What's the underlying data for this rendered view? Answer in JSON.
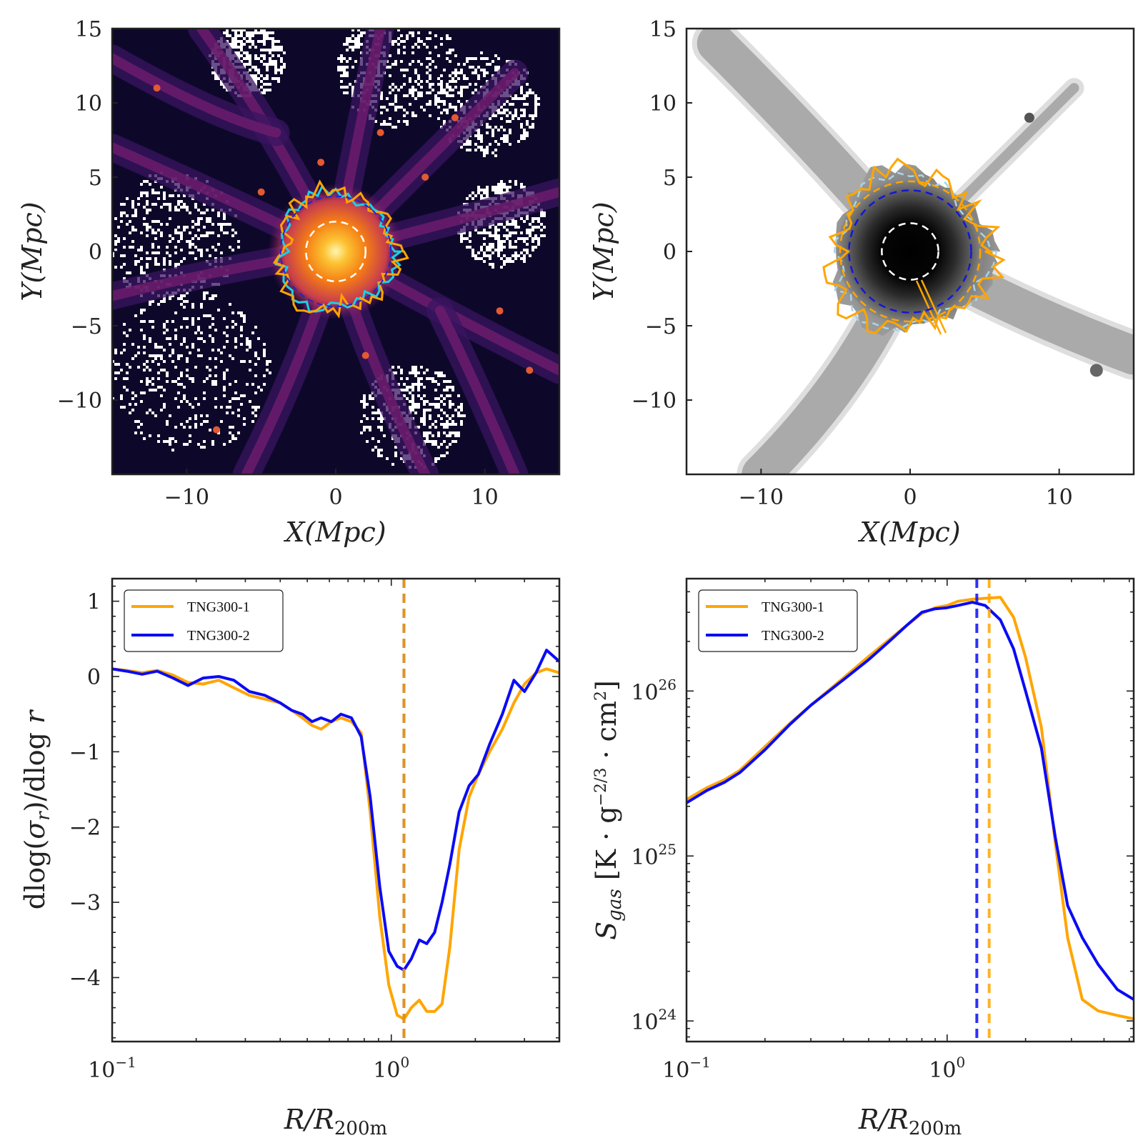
{
  "colors": {
    "tng1": "#ffa500",
    "tng2": "#0b0bf5",
    "cyan": "#18d2e6",
    "lightblue": "#a8d4e6",
    "white": "#ffffff",
    "frame": "#222222"
  },
  "panels": [
    {
      "id": "dm-map",
      "type": "heatmap",
      "colormap": "inferno",
      "xlabel": "X(Mpc)",
      "ylabel": "Y(Mpc)",
      "xlim": [
        -15,
        15
      ],
      "ylim": [
        -15,
        15
      ],
      "xticks": [
        {
          "v": -10,
          "label": "−10"
        },
        {
          "v": 0,
          "label": "0"
        },
        {
          "v": 10,
          "label": "10"
        }
      ],
      "yticks": [
        {
          "v": 15,
          "label": "15"
        },
        {
          "v": 10,
          "label": "10"
        },
        {
          "v": 5,
          "label": "5"
        },
        {
          "v": 0,
          "label": "0"
        },
        {
          "v": -5,
          "label": "−5"
        },
        {
          "v": -10,
          "label": "−10"
        }
      ],
      "r200m_circle_mpc": 2.0,
      "splashback_circle_mpc": 3.7,
      "boundary_contours": [
        {
          "name": "TNG300-1",
          "color": "orange",
          "mean_radius_mpc": 3.9
        },
        {
          "name": "TNG300-2",
          "color": "cyan",
          "mean_radius_mpc": 3.8
        }
      ]
    },
    {
      "id": "gas-map",
      "type": "heatmap",
      "colormap": "gray_r",
      "xlabel": "X(Mpc)",
      "ylabel": "Y(Mpc)",
      "xlim": [
        -15,
        15
      ],
      "ylim": [
        -15,
        15
      ],
      "xticks": [
        {
          "v": -10,
          "label": "−10"
        },
        {
          "v": 0,
          "label": "0"
        },
        {
          "v": 10,
          "label": "10"
        }
      ],
      "yticks": [
        {
          "v": 15,
          "label": "15"
        },
        {
          "v": 10,
          "label": "10"
        },
        {
          "v": 5,
          "label": "5"
        },
        {
          "v": 0,
          "label": "0"
        },
        {
          "v": -5,
          "label": "−5"
        },
        {
          "v": -10,
          "label": "−10"
        }
      ],
      "r200m_circle_mpc": 1.9,
      "circles_mpc": [
        {
          "r": 4.7,
          "color": "orange"
        },
        {
          "r": 4.1,
          "color": "blue"
        }
      ],
      "boundary_contours": [
        {
          "name": "TNG300-1",
          "color": "orange",
          "mean_radius_mpc": 5.3
        },
        {
          "name": "TNG300-2",
          "color": "lightblue",
          "mean_radius_mpc": 5.0
        }
      ]
    }
  ],
  "chart_data": [
    {
      "type": "line",
      "xscale": "log",
      "xlim": [
        0.1,
        4.0
      ],
      "ylim": [
        -4.85,
        1.3
      ],
      "xlabel": "R/R200m",
      "ylabel": "dlog(σr)/dlog r",
      "xticks": [
        {
          "v": 0.1,
          "base": "10",
          "exp": "−1"
        },
        {
          "v": 1.0,
          "base": "10",
          "exp": "0"
        }
      ],
      "yticks": [
        {
          "v": 1,
          "label": "1"
        },
        {
          "v": 0,
          "label": "0"
        },
        {
          "v": -1,
          "label": "−1"
        },
        {
          "v": -2,
          "label": "−2"
        },
        {
          "v": -3,
          "label": "−3"
        },
        {
          "v": -4,
          "label": "−4"
        }
      ],
      "legend": {
        "position": "top-left",
        "entries": [
          "TNG300-1",
          "TNG300-2"
        ]
      },
      "vlines": [
        {
          "x": 1.11,
          "series": "TNG300-2"
        },
        {
          "x": 1.11,
          "series": "TNG300-1"
        }
      ],
      "series": [
        {
          "name": "TNG300-1",
          "x": [
            0.1,
            0.113,
            0.128,
            0.145,
            0.165,
            0.187,
            0.212,
            0.241,
            0.273,
            0.31,
            0.352,
            0.4,
            0.44,
            0.48,
            0.52,
            0.56,
            0.61,
            0.66,
            0.72,
            0.78,
            0.84,
            0.91,
            0.98,
            1.05,
            1.11,
            1.18,
            1.26,
            1.34,
            1.43,
            1.52,
            1.62,
            1.75,
            1.9,
            2.05,
            2.25,
            2.5,
            2.75,
            3.0,
            3.3,
            3.6,
            4.0
          ],
          "y": [
            0.1,
            0.08,
            0.05,
            0.08,
            0.02,
            -0.08,
            -0.1,
            -0.05,
            -0.15,
            -0.25,
            -0.3,
            -0.35,
            -0.45,
            -0.55,
            -0.65,
            -0.7,
            -0.6,
            -0.55,
            -0.6,
            -0.75,
            -1.8,
            -3.2,
            -4.1,
            -4.5,
            -4.55,
            -4.4,
            -4.3,
            -4.45,
            -4.45,
            -4.35,
            -3.6,
            -2.3,
            -1.6,
            -1.3,
            -1.0,
            -0.7,
            -0.35,
            -0.1,
            0.05,
            0.1,
            0.05
          ]
        },
        {
          "name": "TNG300-2",
          "x": [
            0.1,
            0.113,
            0.128,
            0.145,
            0.165,
            0.187,
            0.212,
            0.241,
            0.273,
            0.31,
            0.352,
            0.4,
            0.44,
            0.48,
            0.52,
            0.56,
            0.61,
            0.66,
            0.72,
            0.78,
            0.84,
            0.91,
            0.98,
            1.05,
            1.11,
            1.18,
            1.26,
            1.34,
            1.43,
            1.52,
            1.62,
            1.75,
            1.9,
            2.05,
            2.25,
            2.5,
            2.75,
            3.0,
            3.3,
            3.6,
            4.0
          ],
          "y": [
            0.1,
            0.07,
            0.03,
            0.07,
            -0.02,
            -0.12,
            -0.02,
            0.0,
            -0.05,
            -0.2,
            -0.25,
            -0.35,
            -0.45,
            -0.5,
            -0.6,
            -0.55,
            -0.6,
            -0.5,
            -0.55,
            -0.8,
            -1.6,
            -2.8,
            -3.65,
            -3.85,
            -3.9,
            -3.75,
            -3.5,
            -3.55,
            -3.4,
            -3.0,
            -2.5,
            -1.8,
            -1.45,
            -1.3,
            -0.9,
            -0.5,
            -0.05,
            -0.2,
            0.05,
            0.35,
            0.2
          ]
        }
      ]
    },
    {
      "type": "line",
      "xscale": "log",
      "yscale": "log",
      "xlim": [
        0.1,
        5.2
      ],
      "ylim": [
        7.5e+23,
        4.8e+26
      ],
      "xlabel": "R/R200m",
      "ylabel": "Sgas [K·g−2/3·cm2]",
      "xticks": [
        {
          "v": 0.1,
          "base": "10",
          "exp": "−1"
        },
        {
          "v": 1.0,
          "base": "10",
          "exp": "0"
        }
      ],
      "yticks": [
        {
          "v": 1e+24,
          "base": "10",
          "exp": "24"
        },
        {
          "v": 1e+25,
          "base": "10",
          "exp": "25"
        },
        {
          "v": 1e+26,
          "base": "10",
          "exp": "26"
        }
      ],
      "legend": {
        "position": "top-left",
        "entries": [
          "TNG300-1",
          "TNG300-2"
        ]
      },
      "vlines": [
        {
          "x": 1.3,
          "series": "TNG300-2"
        },
        {
          "x": 1.45,
          "series": "TNG300-1"
        }
      ],
      "series": [
        {
          "name": "TNG300-1",
          "x": [
            0.1,
            0.12,
            0.14,
            0.16,
            0.2,
            0.25,
            0.3,
            0.4,
            0.5,
            0.6,
            0.7,
            0.8,
            0.9,
            1.0,
            1.1,
            1.25,
            1.4,
            1.6,
            1.8,
            2.0,
            2.3,
            2.6,
            2.9,
            3.3,
            3.8,
            4.5,
            5.2
          ],
          "y": [
            2.2e+25,
            2.6e+25,
            2.9e+25,
            3.3e+25,
            4.6e+25,
            6.4e+25,
            8.2e+25,
            1.2e+26,
            1.62e+26,
            2.05e+26,
            2.5e+26,
            2.95e+26,
            3.2e+26,
            3.3e+26,
            3.5e+26,
            3.6e+26,
            3.65e+26,
            3.7e+26,
            2.8e+26,
            1.6e+26,
            6e+25,
            1.2e+25,
            3.2e+24,
            1.35e+24,
            1.15e+24,
            1.08e+24,
            1.03e+24
          ]
        },
        {
          "name": "TNG300-2",
          "x": [
            0.1,
            0.12,
            0.14,
            0.16,
            0.2,
            0.25,
            0.3,
            0.4,
            0.5,
            0.6,
            0.7,
            0.8,
            0.9,
            1.0,
            1.1,
            1.25,
            1.4,
            1.6,
            1.8,
            2.0,
            2.3,
            2.6,
            2.9,
            3.3,
            3.8,
            4.5,
            5.2
          ],
          "y": [
            2.1e+25,
            2.5e+25,
            2.8e+25,
            3.2e+25,
            4.4e+25,
            6.3e+25,
            8.2e+25,
            1.17e+26,
            1.55e+26,
            2e+26,
            2.5e+26,
            3e+26,
            3.15e+26,
            3.2e+26,
            3.3e+26,
            3.45e+26,
            3.3e+26,
            2.7e+26,
            1.8e+26,
            1e+26,
            4.5e+25,
            1.3e+25,
            5e+24,
            3.2e+24,
            2.2e+24,
            1.55e+24,
            1.35e+24
          ]
        }
      ]
    }
  ]
}
